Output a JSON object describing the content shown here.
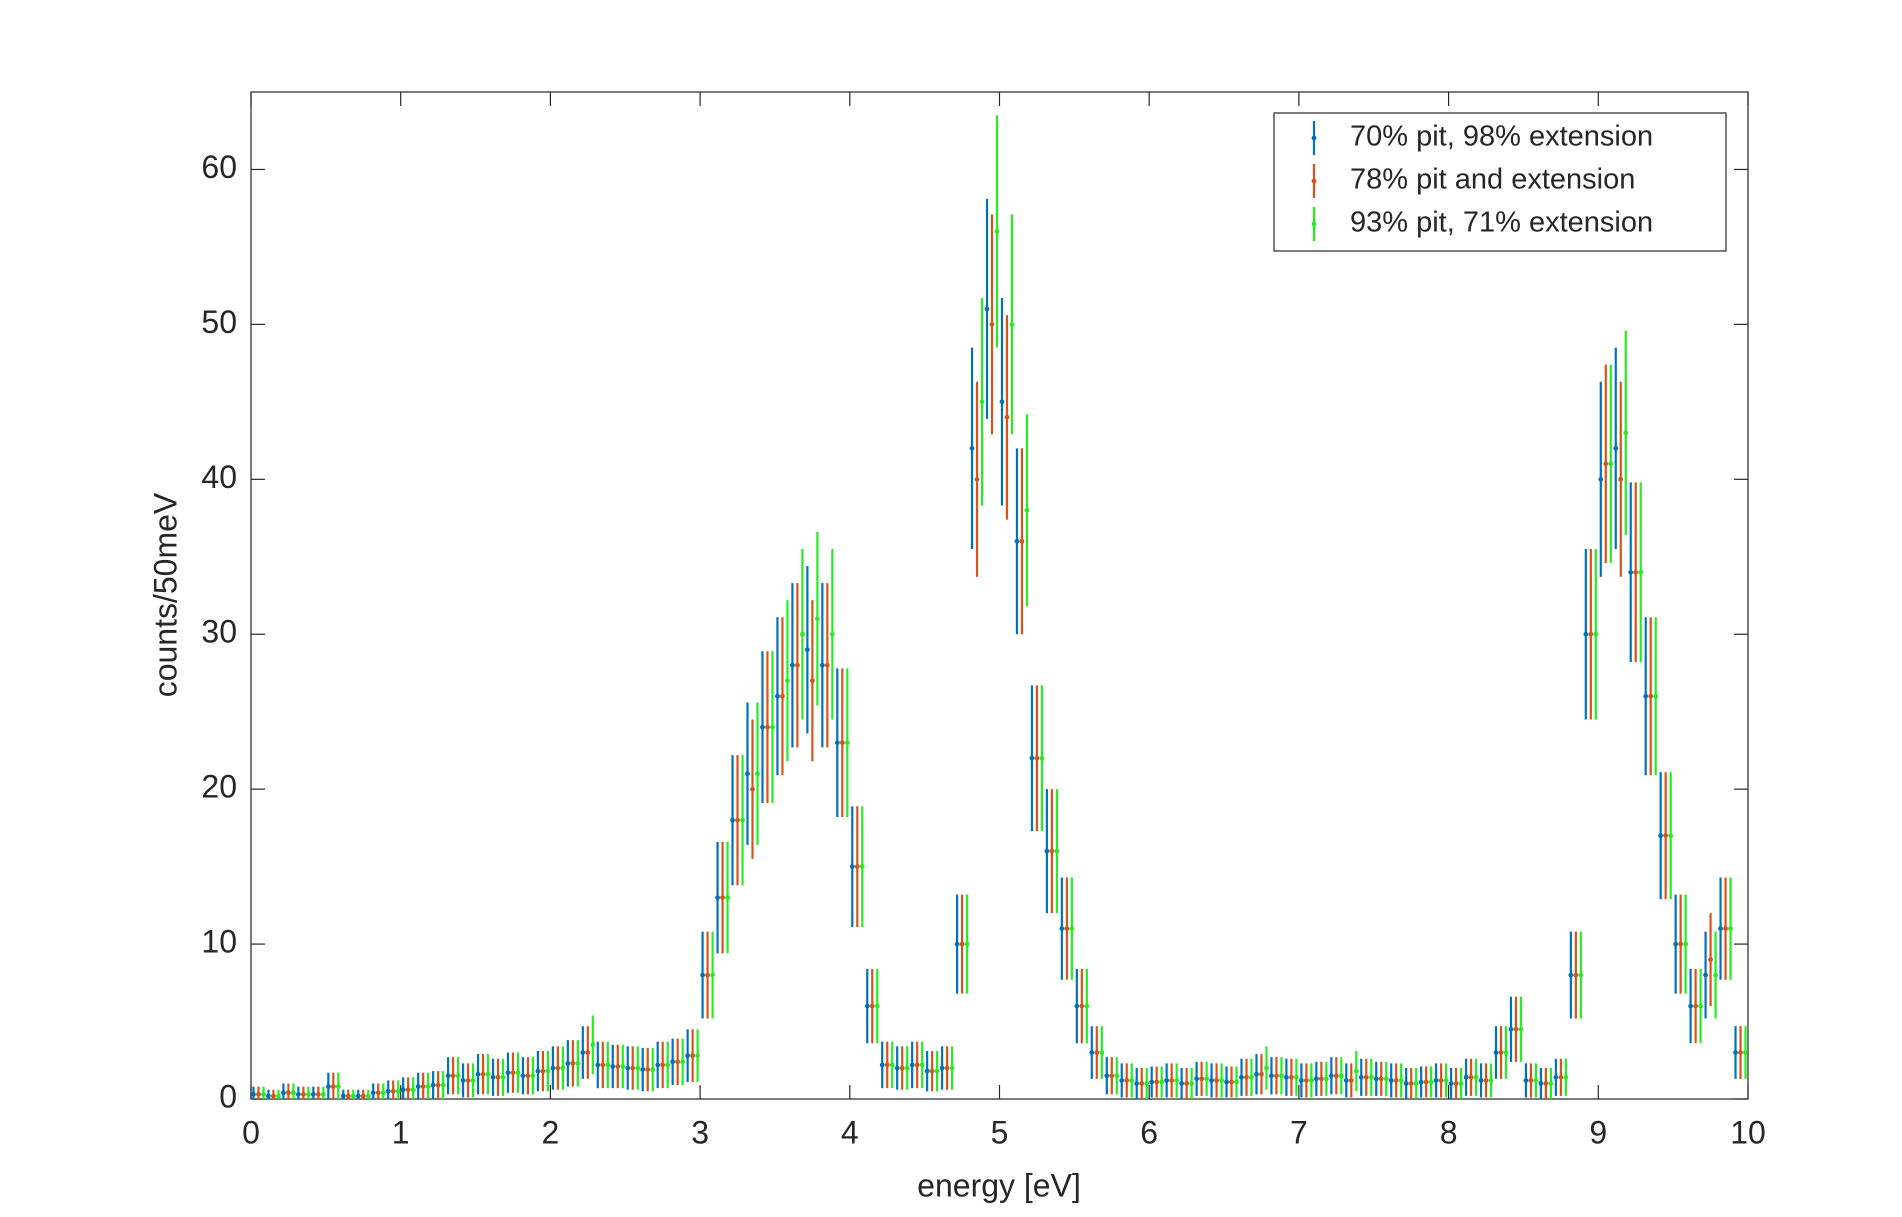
{
  "chart_data": {
    "type": "errorbar",
    "xlabel": "energy [eV]",
    "ylabel": "counts/50meV",
    "xlim": [
      0,
      10
    ],
    "ylim": [
      0,
      65
    ],
    "xticks": [
      0,
      1,
      2,
      3,
      4,
      5,
      6,
      7,
      8,
      9,
      10
    ],
    "yticks": [
      0,
      10,
      20,
      30,
      40,
      50,
      60
    ],
    "legend": "north-east",
    "x": [
      0.05,
      0.15,
      0.25,
      0.35,
      0.45,
      0.55,
      0.65,
      0.75,
      0.85,
      0.95,
      1.05,
      1.15,
      1.25,
      1.35,
      1.45,
      1.55,
      1.65,
      1.75,
      1.85,
      1.95,
      2.05,
      2.15,
      2.25,
      2.35,
      2.45,
      2.55,
      2.65,
      2.75,
      2.85,
      2.95,
      3.05,
      3.15,
      3.25,
      3.35,
      3.45,
      3.55,
      3.65,
      3.75,
      3.85,
      3.95,
      4.05,
      4.15,
      4.25,
      4.35,
      4.45,
      4.55,
      4.65,
      4.75,
      4.85,
      4.95,
      5.05,
      5.15,
      5.25,
      5.35,
      5.45,
      5.55,
      5.65,
      5.75,
      5.85,
      5.95,
      6.05,
      6.15,
      6.25,
      6.35,
      6.45,
      6.55,
      6.65,
      6.75,
      6.85,
      6.95,
      7.05,
      7.15,
      7.25,
      7.35,
      7.45,
      7.55,
      7.65,
      7.75,
      7.85,
      7.95,
      8.05,
      8.15,
      8.25,
      8.35,
      8.45,
      8.55,
      8.65,
      8.75,
      8.85,
      8.95,
      9.05,
      9.15,
      9.25,
      9.35,
      9.45,
      9.55,
      9.65,
      9.75,
      9.85,
      9.95
    ],
    "series": [
      {
        "name": "70% pit, 98% extension",
        "color": "#0072bd",
        "values": [
          0.3,
          0.2,
          0.4,
          0.3,
          0.3,
          0.8,
          0.2,
          0.2,
          0.4,
          0.5,
          0.6,
          0.8,
          0.9,
          1.5,
          1.2,
          1.6,
          1.4,
          1.7,
          1.5,
          1.8,
          2.0,
          2.3,
          3.0,
          2.2,
          2.1,
          2.0,
          1.9,
          2.2,
          2.4,
          2.8,
          8,
          13,
          18,
          21,
          24,
          26,
          28,
          29,
          28,
          23,
          15,
          6,
          2.2,
          2.0,
          2.2,
          1.8,
          2.0,
          10,
          42,
          51,
          45,
          36,
          22,
          16,
          11,
          6,
          3,
          1.5,
          1.2,
          1.0,
          1.1,
          1.2,
          1.0,
          1.3,
          1.2,
          1.1,
          1.4,
          1.6,
          1.5,
          1.4,
          1.2,
          1.3,
          1.5,
          1.2,
          1.4,
          1.3,
          1.2,
          1.0,
          1.1,
          1.2,
          1.0,
          1.4,
          1.2,
          3.0,
          4.5,
          1.2,
          1.0,
          1.4,
          8,
          30,
          40,
          42,
          34,
          26,
          17,
          10,
          6,
          8,
          11,
          3
        ],
        "errors": [
          0.5,
          0.4,
          0.6,
          0.5,
          0.5,
          0.9,
          0.4,
          0.4,
          0.6,
          0.7,
          0.8,
          0.9,
          0.9,
          1.2,
          1.1,
          1.3,
          1.2,
          1.3,
          1.2,
          1.3,
          1.4,
          1.5,
          1.7,
          1.5,
          1.4,
          1.4,
          1.4,
          1.5,
          1.5,
          1.7,
          2.8,
          3.6,
          4.2,
          4.6,
          4.9,
          5.1,
          5.3,
          5.4,
          5.3,
          4.8,
          3.9,
          2.4,
          1.5,
          1.4,
          1.5,
          1.3,
          1.4,
          3.2,
          6.5,
          7.1,
          6.7,
          6.0,
          4.7,
          4.0,
          3.3,
          2.4,
          1.7,
          1.2,
          1.1,
          1.0,
          1.0,
          1.1,
          1.0,
          1.1,
          1.1,
          1.0,
          1.2,
          1.3,
          1.2,
          1.2,
          1.1,
          1.1,
          1.2,
          1.1,
          1.2,
          1.1,
          1.1,
          1.0,
          1.0,
          1.1,
          1.0,
          1.2,
          1.1,
          1.7,
          2.1,
          1.1,
          1.0,
          1.2,
          2.8,
          5.5,
          6.3,
          6.5,
          5.8,
          5.1,
          4.1,
          3.2,
          2.4,
          2.8,
          3.3,
          1.7
        ]
      },
      {
        "name": "78% pit and extension",
        "color": "#d95319",
        "values": [
          0.3,
          0.2,
          0.4,
          0.3,
          0.3,
          0.8,
          0.2,
          0.2,
          0.4,
          0.5,
          0.6,
          0.8,
          0.9,
          1.5,
          1.2,
          1.6,
          1.4,
          1.7,
          1.5,
          1.8,
          2.0,
          2.3,
          3.0,
          2.2,
          2.1,
          2.0,
          1.9,
          2.2,
          2.4,
          2.8,
          8,
          13,
          18,
          20,
          24,
          26,
          28,
          27,
          28,
          23,
          15,
          6,
          2.2,
          2.0,
          2.2,
          1.8,
          2.0,
          10,
          40,
          50,
          44,
          36,
          22,
          16,
          11,
          6,
          3,
          1.5,
          1.2,
          1.0,
          1.1,
          1.2,
          1.0,
          1.3,
          1.2,
          1.1,
          1.4,
          1.6,
          1.5,
          1.4,
          1.2,
          1.3,
          1.5,
          1.2,
          1.4,
          1.3,
          1.2,
          1.0,
          1.1,
          1.2,
          1.0,
          1.4,
          1.2,
          3.0,
          4.5,
          1.2,
          1.0,
          1.4,
          8,
          30,
          41,
          40,
          34,
          26,
          17,
          10,
          6,
          9,
          11,
          3
        ],
        "errors": [
          0.5,
          0.4,
          0.6,
          0.5,
          0.5,
          0.9,
          0.4,
          0.4,
          0.6,
          0.7,
          0.8,
          0.9,
          0.9,
          1.2,
          1.1,
          1.3,
          1.2,
          1.3,
          1.2,
          1.3,
          1.4,
          1.5,
          1.7,
          1.5,
          1.4,
          1.4,
          1.4,
          1.5,
          1.5,
          1.7,
          2.8,
          3.6,
          4.2,
          4.5,
          4.9,
          5.1,
          5.3,
          5.2,
          5.3,
          4.8,
          3.9,
          2.4,
          1.5,
          1.4,
          1.5,
          1.3,
          1.4,
          3.2,
          6.3,
          7.1,
          6.6,
          6.0,
          4.7,
          4.0,
          3.3,
          2.4,
          1.7,
          1.2,
          1.1,
          1.0,
          1.0,
          1.1,
          1.0,
          1.1,
          1.1,
          1.0,
          1.2,
          1.3,
          1.2,
          1.2,
          1.1,
          1.1,
          1.2,
          1.1,
          1.2,
          1.1,
          1.1,
          1.0,
          1.0,
          1.1,
          1.0,
          1.2,
          1.1,
          1.7,
          2.1,
          1.1,
          1.0,
          1.2,
          2.8,
          5.5,
          6.4,
          6.3,
          5.8,
          5.1,
          4.1,
          3.2,
          2.4,
          3.0,
          3.3,
          1.7
        ]
      },
      {
        "name": "93% pit, 71% extension",
        "color": "#22ee22",
        "values": [
          0.3,
          0.2,
          0.4,
          0.3,
          0.3,
          0.8,
          0.2,
          0.2,
          0.4,
          0.5,
          0.6,
          0.8,
          0.9,
          1.5,
          1.2,
          1.6,
          1.4,
          1.7,
          1.5,
          1.8,
          2.0,
          2.3,
          3.5,
          2.2,
          2.1,
          2.0,
          1.9,
          2.2,
          2.4,
          2.8,
          8,
          13,
          18,
          21,
          24,
          27,
          30,
          31,
          30,
          23,
          15,
          6,
          2.2,
          2.0,
          2.2,
          1.8,
          2.0,
          10,
          45,
          56,
          50,
          38,
          22,
          16,
          11,
          6,
          3,
          1.5,
          1.2,
          1.0,
          1.1,
          1.2,
          1.0,
          1.3,
          1.2,
          1.1,
          1.4,
          2.0,
          1.5,
          1.4,
          1.2,
          1.3,
          1.5,
          1.8,
          1.4,
          1.3,
          1.2,
          1.0,
          1.1,
          1.2,
          1.0,
          1.4,
          1.2,
          3.0,
          4.5,
          1.2,
          1.0,
          1.4,
          8,
          30,
          41,
          43,
          34,
          26,
          17,
          10,
          6,
          8,
          11,
          3
        ],
        "errors": [
          0.5,
          0.4,
          0.6,
          0.5,
          0.5,
          0.9,
          0.4,
          0.4,
          0.6,
          0.7,
          0.8,
          0.9,
          0.9,
          1.2,
          1.1,
          1.3,
          1.2,
          1.3,
          1.2,
          1.3,
          1.4,
          1.5,
          1.9,
          1.5,
          1.4,
          1.4,
          1.4,
          1.5,
          1.5,
          1.7,
          2.8,
          3.6,
          4.2,
          4.6,
          4.9,
          5.2,
          5.5,
          5.6,
          5.5,
          4.8,
          3.9,
          2.4,
          1.5,
          1.4,
          1.5,
          1.3,
          1.4,
          3.2,
          6.7,
          7.5,
          7.1,
          6.2,
          4.7,
          4.0,
          3.3,
          2.4,
          1.7,
          1.2,
          1.1,
          1.0,
          1.0,
          1.1,
          1.0,
          1.1,
          1.1,
          1.0,
          1.2,
          1.4,
          1.2,
          1.2,
          1.1,
          1.1,
          1.2,
          1.3,
          1.2,
          1.1,
          1.1,
          1.0,
          1.0,
          1.1,
          1.0,
          1.2,
          1.1,
          1.7,
          2.1,
          1.1,
          1.0,
          1.2,
          2.8,
          5.5,
          6.4,
          6.6,
          5.8,
          5.1,
          4.1,
          3.2,
          2.4,
          2.8,
          3.3,
          1.7
        ]
      }
    ]
  }
}
